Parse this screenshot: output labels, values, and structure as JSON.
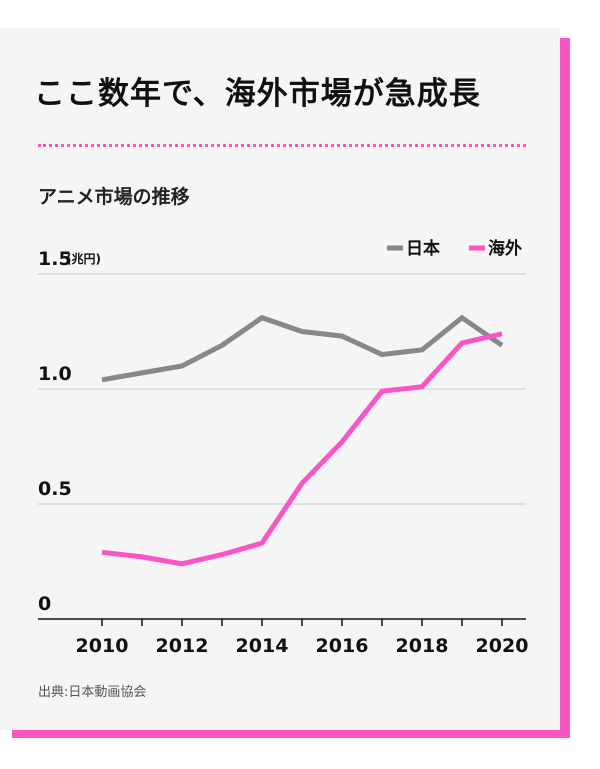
{
  "title": "ここ数年で、海外市場が急成長",
  "chart_title": "アニメ市場の推移",
  "source": "出典:日本動画協会",
  "chart_data": {
    "type": "line",
    "unit": "(兆円)",
    "x": [
      2010,
      2011,
      2012,
      2013,
      2014,
      2015,
      2016,
      2017,
      2018,
      2019,
      2020
    ],
    "x_tick_labels": [
      "2010",
      "2012",
      "2014",
      "2016",
      "2018",
      "2020"
    ],
    "x_tick_values": [
      2010,
      2012,
      2014,
      2016,
      2018,
      2020
    ],
    "y_tick_labels": [
      "1.5",
      "1.0",
      "0.5",
      "0"
    ],
    "y_tick_values": [
      1.5,
      1.0,
      0.5,
      0
    ],
    "ylim": [
      0,
      1.5
    ],
    "grid": true,
    "legend_position": "top-right",
    "series": [
      {
        "name": "日本",
        "color": "#888888",
        "values": [
          1.04,
          1.07,
          1.1,
          1.19,
          1.31,
          1.25,
          1.23,
          1.15,
          1.17,
          1.31,
          1.19
        ]
      },
      {
        "name": "海外",
        "color": "#f955c4",
        "values": [
          0.29,
          0.27,
          0.24,
          0.28,
          0.33,
          0.59,
          0.77,
          0.99,
          1.01,
          1.2,
          1.24
        ]
      }
    ]
  }
}
